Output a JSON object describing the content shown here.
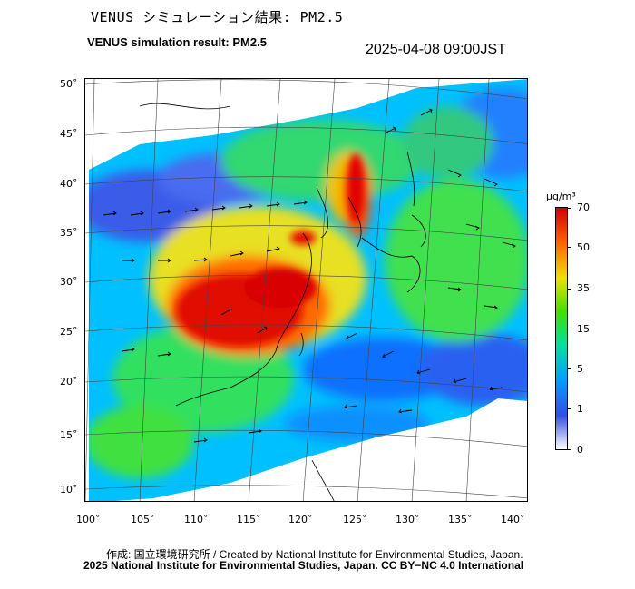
{
  "header": {
    "title_jp": "VENUS シミュレーション結果: PM2.5",
    "title_en": "VENUS simulation result: PM2.5",
    "timestamp": "2025-04-08 09:00JST"
  },
  "map": {
    "lat_labels": [
      "50˚",
      "45˚",
      "40˚",
      "35˚",
      "30˚",
      "25˚",
      "20˚",
      "15˚",
      "10˚"
    ],
    "lon_labels": [
      "100˚",
      "105˚",
      "110˚",
      "115˚",
      "120˚",
      "125˚",
      "130˚",
      "135˚",
      "140˚"
    ]
  },
  "colorbar": {
    "unit": "µg/m³",
    "ticks": [
      "70",
      "50",
      "35",
      "15",
      "5",
      "1",
      "0"
    ],
    "colors": [
      "#ffffff",
      "#3050e0",
      "#00a0ff",
      "#00e0a0",
      "#40e000",
      "#f0e000",
      "#ff6000",
      "#d00000"
    ]
  },
  "footer": {
    "credit_line1": "作成: 国立環境研究所 / Created by National Institute for Environmental Studies, Japan.",
    "credit_line2": "2025 National Institute for Environmental Studies, Japan. CC BY−NC 4.0 International"
  }
}
